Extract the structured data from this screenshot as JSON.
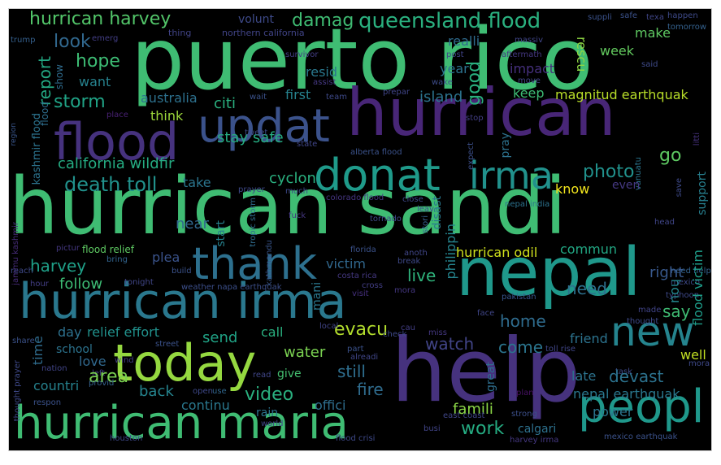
{
  "colors": {
    "background": "#000000",
    "frame": "#ffffff"
  },
  "words": [
    {
      "text": "puerto rico",
      "color": "#3fbc73"
    },
    {
      "text": "hurrican sandi",
      "color": "#3fbc73"
    },
    {
      "text": "hurrican",
      "color": "#482677"
    },
    {
      "text": "help",
      "color": "#46327e"
    },
    {
      "text": "nepal",
      "color": "#1f988b"
    },
    {
      "text": "hurrican irma",
      "color": "#2a788e"
    },
    {
      "text": "hurrican maria",
      "color": "#3fbc73"
    },
    {
      "text": "updat",
      "color": "#3b528b"
    },
    {
      "text": "flood",
      "color": "#46327e"
    },
    {
      "text": "donat",
      "color": "#1f9a8a"
    },
    {
      "text": "irma",
      "color": "#21918c"
    },
    {
      "text": "thank",
      "color": "#2d708e"
    },
    {
      "text": "today",
      "color": "#95d840"
    },
    {
      "text": "peopl",
      "color": "#1f988b"
    },
    {
      "text": "new",
      "color": "#25848e"
    },
    {
      "text": "hurrican harvey",
      "color": "#52c569"
    },
    {
      "text": "queensland flood",
      "color": "#2ab07f"
    },
    {
      "text": "damag",
      "color": "#3fbc73"
    },
    {
      "text": "volunt",
      "color": "#3e4a89"
    },
    {
      "text": "northern california",
      "color": "#414487"
    },
    {
      "text": "trump",
      "color": "#35608d"
    },
    {
      "text": "emerg",
      "color": "#433e85"
    },
    {
      "text": "thing",
      "color": "#414487"
    },
    {
      "text": "look",
      "color": "#31688e"
    },
    {
      "text": "realli",
      "color": "#2f6c8e"
    },
    {
      "text": "post",
      "color": "#414487"
    },
    {
      "text": "aftermath",
      "color": "#453882"
    },
    {
      "text": "suppli",
      "color": "#3b528b"
    },
    {
      "text": "safe",
      "color": "#3b528b"
    },
    {
      "text": "texa",
      "color": "#404688"
    },
    {
      "text": "happen",
      "color": "#3e4a89"
    },
    {
      "text": "tomorrow",
      "color": "#34618d"
    },
    {
      "text": "massiv",
      "color": "#404688"
    },
    {
      "text": "rescu",
      "color": "#8fd744"
    },
    {
      "text": "week",
      "color": "#63cb5f"
    },
    {
      "text": "make",
      "color": "#5ec962"
    },
    {
      "text": "said",
      "color": "#3e4a89"
    },
    {
      "text": "hope",
      "color": "#3dbc74"
    },
    {
      "text": "report",
      "color": "#23a983"
    },
    {
      "text": "show",
      "color": "#2f6c8e"
    },
    {
      "text": "flood",
      "color": "#2e6e8e"
    },
    {
      "text": "want",
      "color": "#26828e"
    },
    {
      "text": "resid",
      "color": "#2a788e"
    },
    {
      "text": "year",
      "color": "#2c728e"
    },
    {
      "text": "good",
      "color": "#29af7f"
    },
    {
      "text": "impact",
      "color": "#46307e"
    },
    {
      "text": "survivor",
      "color": "#433e85"
    },
    {
      "text": "assist",
      "color": "#453882"
    },
    {
      "text": "wake",
      "color": "#3e4c8a"
    },
    {
      "text": "move",
      "color": "#414487"
    },
    {
      "text": "storm",
      "color": "#20a386"
    },
    {
      "text": "australia",
      "color": "#2d718e"
    },
    {
      "text": "citi",
      "color": "#2ab07f"
    },
    {
      "text": "wait",
      "color": "#3b528b"
    },
    {
      "text": "first",
      "color": "#26828e"
    },
    {
      "text": "team",
      "color": "#3e4989"
    },
    {
      "text": "prepar",
      "color": "#404588"
    },
    {
      "text": "island",
      "color": "#2c738e"
    },
    {
      "text": "keep",
      "color": "#3dbc74"
    },
    {
      "text": "magnitud earthquak",
      "color": "#b8de29"
    },
    {
      "text": "kashmir flood",
      "color": "#2c738e"
    },
    {
      "text": "place",
      "color": "#482173"
    },
    {
      "text": "think",
      "color": "#9dd93b"
    },
    {
      "text": "stay safe",
      "color": "#25ac82"
    },
    {
      "text": "tweet",
      "color": "#3e4c8a"
    },
    {
      "text": "state",
      "color": "#404688"
    },
    {
      "text": "stop",
      "color": "#433e85"
    },
    {
      "text": "region",
      "color": "#39568c"
    },
    {
      "text": "california wildfir",
      "color": "#25ac82"
    },
    {
      "text": "alberta flood",
      "color": "#3b528b"
    },
    {
      "text": "expect",
      "color": "#3c4f8a"
    },
    {
      "text": "pray",
      "color": "#2c728e"
    },
    {
      "text": "photo",
      "color": "#21918c"
    },
    {
      "text": "go",
      "color": "#5ec962"
    },
    {
      "text": "vanuatu",
      "color": "#2b758e"
    },
    {
      "text": "litti",
      "color": "#46327e"
    },
    {
      "text": "death toll",
      "color": "#21918c"
    },
    {
      "text": "take",
      "color": "#2b758e"
    },
    {
      "text": "cyclon",
      "color": "#2ab07f"
    },
    {
      "text": "prayer",
      "color": "#3e4989"
    },
    {
      "text": "much",
      "color": "#3e4989"
    },
    {
      "text": "colorado flood",
      "color": "#453581"
    },
    {
      "text": "know",
      "color": "#f2e51d"
    },
    {
      "text": "even",
      "color": "#453882"
    },
    {
      "text": "support",
      "color": "#277f8e"
    },
    {
      "text": "save",
      "color": "#3e4a89"
    },
    {
      "text": "tropic storm",
      "color": "#2f6c8e"
    },
    {
      "text": "kathmandu",
      "color": "#39568c"
    },
    {
      "text": "close",
      "color": "#3e4989"
    },
    {
      "text": "leav",
      "color": "#3c4f8a"
    },
    {
      "text": "nepal india",
      "color": "#2c728e"
    },
    {
      "text": "harvey",
      "color": "#1fa088"
    },
    {
      "text": "plea",
      "color": "#3a538b"
    },
    {
      "text": "near",
      "color": "#31688e"
    },
    {
      "text": "start",
      "color": "#26828e"
    },
    {
      "text": "fuck",
      "color": "#453882"
    },
    {
      "text": "tornado",
      "color": "#3e4a89"
    },
    {
      "text": "stori",
      "color": "#35608d"
    },
    {
      "text": "disast",
      "color": "#2a788e"
    },
    {
      "text": "philippin",
      "color": "#25848e"
    },
    {
      "text": "hurrican odil",
      "color": "#d0e11c"
    },
    {
      "text": "commun",
      "color": "#22a884"
    },
    {
      "text": "head",
      "color": "#404688"
    },
    {
      "text": "flood relief",
      "color": "#5ec962"
    },
    {
      "text": "pictur",
      "color": "#453882"
    },
    {
      "text": "bring",
      "color": "#32648e"
    },
    {
      "text": "build",
      "color": "#3b528b"
    },
    {
      "text": "florida",
      "color": "#3b528b"
    },
    {
      "text": "break",
      "color": "#3e4989"
    },
    {
      "text": "anoth",
      "color": "#404688"
    },
    {
      "text": "need help",
      "color": "#33628d"
    },
    {
      "text": "mexico",
      "color": "#3e4989"
    },
    {
      "text": "follow",
      "color": "#3dbc74"
    },
    {
      "text": "victim",
      "color": "#31688e"
    },
    {
      "text": "costa rica",
      "color": "#453882"
    },
    {
      "text": "cross",
      "color": "#433e85"
    },
    {
      "text": "live",
      "color": "#2fb47c"
    },
    {
      "text": "typhoon",
      "color": "#3e4989"
    },
    {
      "text": "right",
      "color": "#38588c"
    },
    {
      "text": "flood victim",
      "color": "#1e9c89"
    },
    {
      "text": "weather napa earthquak",
      "color": "#3c4f8a"
    },
    {
      "text": "need",
      "color": "#2d718e"
    },
    {
      "text": "hour",
      "color": "#433e85"
    },
    {
      "text": "tonight",
      "color": "#404688"
    },
    {
      "text": "visit",
      "color": "#46307e"
    },
    {
      "text": "mora",
      "color": "#453882"
    },
    {
      "text": "mani",
      "color": "#2a778e"
    },
    {
      "text": "pakistan",
      "color": "#39558c"
    },
    {
      "text": "hou",
      "color": "#24878e"
    },
    {
      "text": "say",
      "color": "#3fbc73"
    },
    {
      "text": "reach",
      "color": "#3e4a89"
    },
    {
      "text": "jammu kashmir",
      "color": "#472c7a"
    },
    {
      "text": "home",
      "color": "#2f6c8e"
    },
    {
      "text": "face",
      "color": "#404688"
    },
    {
      "text": "made",
      "color": "#414487"
    },
    {
      "text": "share",
      "color": "#3b528b"
    },
    {
      "text": "day",
      "color": "#2d718e"
    },
    {
      "text": "relief effort",
      "color": "#21918c"
    },
    {
      "text": "evacu",
      "color": "#b2dd2d"
    },
    {
      "text": "friend",
      "color": "#2c738e"
    },
    {
      "text": "local",
      "color": "#414487"
    },
    {
      "text": "cau",
      "color": "#433e85"
    },
    {
      "text": "thought",
      "color": "#3e4a89"
    },
    {
      "text": "time",
      "color": "#2f6c8e"
    },
    {
      "text": "send",
      "color": "#20a386"
    },
    {
      "text": "call",
      "color": "#29af7f"
    },
    {
      "text": "water",
      "color": "#7ad151"
    },
    {
      "text": "watch",
      "color": "#414487"
    },
    {
      "text": "come",
      "color": "#2b758e"
    },
    {
      "text": "school",
      "color": "#2c738e"
    },
    {
      "text": "nation",
      "color": "#414487"
    },
    {
      "text": "street",
      "color": "#3b528b"
    },
    {
      "text": "part",
      "color": "#3b528b"
    },
    {
      "text": "check",
      "color": "#3e4989"
    },
    {
      "text": "miss",
      "color": "#453882"
    },
    {
      "text": "well",
      "color": "#c2df23"
    },
    {
      "text": "thought prayer",
      "color": "#3e4989"
    },
    {
      "text": "love",
      "color": "#31688e"
    },
    {
      "text": "wind",
      "color": "#433e85"
    },
    {
      "text": "still",
      "color": "#2e6e8e"
    },
    {
      "text": "alreadi",
      "color": "#404688"
    },
    {
      "text": "late",
      "color": "#2c738e"
    },
    {
      "text": "task",
      "color": "#3e4989"
    },
    {
      "text": "devast",
      "color": "#2c728e"
    },
    {
      "text": "mora",
      "color": "#3e4989"
    },
    {
      "text": "left",
      "color": "#433e85"
    },
    {
      "text": "area",
      "color": "#7ad151"
    },
    {
      "text": "give",
      "color": "#44bf70"
    },
    {
      "text": "read",
      "color": "#404688"
    },
    {
      "text": "fire",
      "color": "#2f6c8e"
    },
    {
      "text": "great",
      "color": "#2e6e8e"
    },
    {
      "text": "nepal earthquak",
      "color": "#2a788e"
    },
    {
      "text": "toll rise",
      "color": "#404688"
    },
    {
      "text": "countri",
      "color": "#26828e"
    },
    {
      "text": "provid",
      "color": "#35608d"
    },
    {
      "text": "back",
      "color": "#25848e"
    },
    {
      "text": "video",
      "color": "#2ab07f"
    },
    {
      "text": "famili",
      "color": "#8bd646"
    },
    {
      "text": "open",
      "color": "#3e4989"
    },
    {
      "text": "use",
      "color": "#31688e"
    },
    {
      "text": "plan",
      "color": "#471164"
    },
    {
      "text": "power",
      "color": "#2b758e"
    },
    {
      "text": "respon",
      "color": "#3b528b"
    },
    {
      "text": "continu",
      "color": "#2a788e"
    },
    {
      "text": "offici",
      "color": "#2e6e8e"
    },
    {
      "text": "rain",
      "color": "#2c738e"
    },
    {
      "text": "world",
      "color": "#404688"
    },
    {
      "text": "work",
      "color": "#25ac82"
    },
    {
      "text": "busi",
      "color": "#414487"
    },
    {
      "text": "east coast",
      "color": "#404688"
    },
    {
      "text": "strong",
      "color": "#3c4f8a"
    },
    {
      "text": "calgari",
      "color": "#2d718e"
    },
    {
      "text": "houston",
      "color": "#3e4989"
    },
    {
      "text": "flood crisi",
      "color": "#3e4989"
    },
    {
      "text": "harvey irma",
      "color": "#453882"
    },
    {
      "text": "mexico earthquak",
      "color": "#3b528b"
    }
  ]
}
